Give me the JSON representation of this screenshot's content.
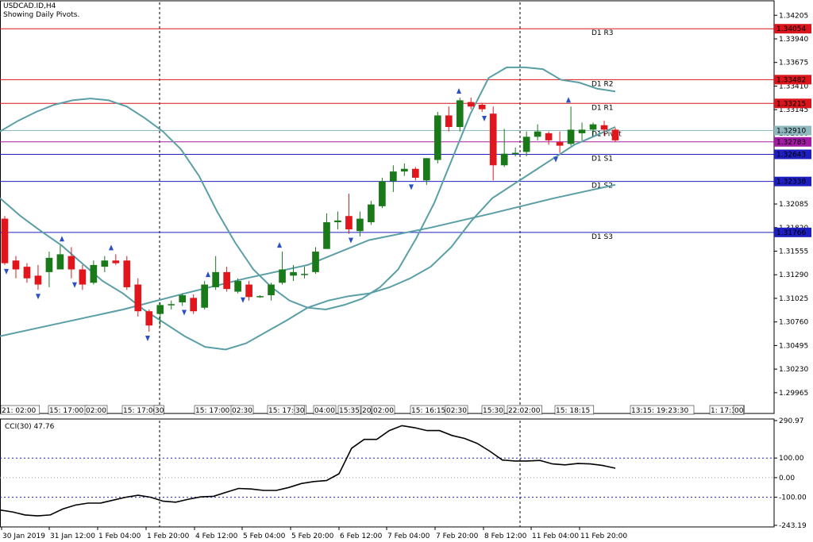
{
  "header": {
    "symbol": "USDCAD.ID,H4",
    "subtitle": "Showing Daily Pivots."
  },
  "colors": {
    "bull": "#1a7a1a",
    "bear": "#e0161c",
    "band": "#5a9ea6",
    "resistance": "#d9161c",
    "support": "#1f1fbf",
    "pivot": "#8fb8bf",
    "price_line": "#a31ba3",
    "fractal": "#2a4fc8",
    "cci_line": "#000000"
  },
  "price_axis": {
    "ticks": [
      "1.34205",
      "1.33940",
      "1.33675",
      "1.33410",
      "1.33145",
      "1.32880",
      "1.32615",
      "1.32350",
      "1.32085",
      "1.31820",
      "1.31555",
      "1.31290",
      "1.31025",
      "1.30760",
      "1.30495",
      "1.30230",
      "1.29965"
    ]
  },
  "levels": [
    {
      "name": "D1 R3",
      "value": "1.34054",
      "color": "#d9161c"
    },
    {
      "name": "D1 R2",
      "value": "1.33482",
      "color": "#d9161c"
    },
    {
      "name": "D1 R1",
      "value": "1.33215",
      "color": "#d9161c"
    },
    {
      "name": "D1 Pivot",
      "value": "1.32910",
      "color": "#8fb8bf"
    },
    {
      "name": "D1 S1",
      "value": "1.32643",
      "color": "#1f1fbf"
    },
    {
      "name": "D1 S2",
      "value": "1.32338",
      "color": "#1f1fbf"
    },
    {
      "name": "D1 S3",
      "value": "1.31766",
      "color": "#1f1fbf"
    }
  ],
  "current_price": "1.32783",
  "overlay_labels": [
    "21: 02:00",
    "15: 17:00",
    "02:00",
    "15: 17:00",
    "30",
    "15: 17:00",
    "02:30",
    "15: 17:01",
    "30",
    "04:00",
    "15:35",
    "20",
    "02:00",
    "15: 16:15",
    "02:30",
    "15:30",
    "22:02:00",
    "15: 18:15",
    "13:15: 19:23:30",
    "1: 17:30",
    "00"
  ],
  "cci": {
    "label": "CCI(30) 47.76",
    "ticks": [
      "290.97",
      "100.00",
      "0.00",
      "-100.00",
      "-243.19"
    ]
  },
  "time_axis": [
    "30 Jan 2019",
    "31 Jan 12:00",
    "1 Feb 04:00",
    "1 Feb 20:00",
    "4 Feb 12:00",
    "5 Feb 04:00",
    "5 Feb 20:00",
    "6 Feb 12:00",
    "7 Feb 04:00",
    "7 Feb 20:00",
    "8 Feb 12:00",
    "11 Feb 04:00",
    "11 Feb 20:00"
  ],
  "chart_data": {
    "type": "candlestick",
    "title": "USDCAD.ID,H4",
    "y_range": [
      1.2983,
      1.3435
    ],
    "candles": [
      {
        "o": 1.3192,
        "h": 1.3195,
        "l": 1.314,
        "c": 1.3142
      },
      {
        "o": 1.3145,
        "h": 1.315,
        "l": 1.3125,
        "c": 1.3135
      },
      {
        "o": 1.3138,
        "h": 1.3142,
        "l": 1.312,
        "c": 1.3125
      },
      {
        "o": 1.3128,
        "h": 1.314,
        "l": 1.3112,
        "c": 1.3118
      },
      {
        "o": 1.3132,
        "h": 1.3155,
        "l": 1.3115,
        "c": 1.3148
      },
      {
        "o": 1.3135,
        "h": 1.3162,
        "l": 1.3135,
        "c": 1.3152
      },
      {
        "o": 1.315,
        "h": 1.316,
        "l": 1.3125,
        "c": 1.3135
      },
      {
        "o": 1.3135,
        "h": 1.314,
        "l": 1.3112,
        "c": 1.3118
      },
      {
        "o": 1.312,
        "h": 1.3145,
        "l": 1.3118,
        "c": 1.314
      },
      {
        "o": 1.3138,
        "h": 1.315,
        "l": 1.3132,
        "c": 1.3145
      },
      {
        "o": 1.3145,
        "h": 1.3152,
        "l": 1.314,
        "c": 1.3142
      },
      {
        "o": 1.3145,
        "h": 1.315,
        "l": 1.3112,
        "c": 1.3115
      },
      {
        "o": 1.3118,
        "h": 1.3125,
        "l": 1.3082,
        "c": 1.3088
      },
      {
        "o": 1.3088,
        "h": 1.309,
        "l": 1.3065,
        "c": 1.3072
      },
      {
        "o": 1.3085,
        "h": 1.3098,
        "l": 1.307,
        "c": 1.3095
      },
      {
        "o": 1.3095,
        "h": 1.31,
        "l": 1.309,
        "c": 1.3096
      },
      {
        "o": 1.3098,
        "h": 1.3108,
        "l": 1.3094,
        "c": 1.3106
      },
      {
        "o": 1.3103,
        "h": 1.3107,
        "l": 1.3085,
        "c": 1.3088
      },
      {
        "o": 1.3092,
        "h": 1.3122,
        "l": 1.309,
        "c": 1.3118
      },
      {
        "o": 1.3115,
        "h": 1.315,
        "l": 1.3112,
        "c": 1.3132
      },
      {
        "o": 1.3132,
        "h": 1.3138,
        "l": 1.311,
        "c": 1.3113
      },
      {
        "o": 1.311,
        "h": 1.3125,
        "l": 1.3108,
        "c": 1.3122
      },
      {
        "o": 1.3118,
        "h": 1.3122,
        "l": 1.31,
        "c": 1.3104
      },
      {
        "o": 1.3104,
        "h": 1.3106,
        "l": 1.3103,
        "c": 1.3105
      },
      {
        "o": 1.3106,
        "h": 1.312,
        "l": 1.31,
        "c": 1.3118
      },
      {
        "o": 1.312,
        "h": 1.3155,
        "l": 1.3118,
        "c": 1.3135
      },
      {
        "o": 1.3128,
        "h": 1.314,
        "l": 1.3122,
        "c": 1.3132
      },
      {
        "o": 1.313,
        "h": 1.3138,
        "l": 1.3125,
        "c": 1.313
      },
      {
        "o": 1.3132,
        "h": 1.316,
        "l": 1.313,
        "c": 1.3155
      },
      {
        "o": 1.3158,
        "h": 1.3198,
        "l": 1.3158,
        "c": 1.3188
      },
      {
        "o": 1.3188,
        "h": 1.32,
        "l": 1.318,
        "c": 1.319
      },
      {
        "o": 1.3195,
        "h": 1.322,
        "l": 1.3175,
        "c": 1.318
      },
      {
        "o": 1.3178,
        "h": 1.32,
        "l": 1.3172,
        "c": 1.3192
      },
      {
        "o": 1.3188,
        "h": 1.3212,
        "l": 1.3185,
        "c": 1.3208
      },
      {
        "o": 1.3206,
        "h": 1.3238,
        "l": 1.3204,
        "c": 1.3234
      },
      {
        "o": 1.3234,
        "h": 1.3252,
        "l": 1.3222,
        "c": 1.3245
      },
      {
        "o": 1.3245,
        "h": 1.3254,
        "l": 1.324,
        "c": 1.3248
      },
      {
        "o": 1.3248,
        "h": 1.325,
        "l": 1.3235,
        "c": 1.3238
      },
      {
        "o": 1.3235,
        "h": 1.326,
        "l": 1.323,
        "c": 1.326
      },
      {
        "o": 1.3258,
        "h": 1.3312,
        "l": 1.3254,
        "c": 1.3308
      },
      {
        "o": 1.3308,
        "h": 1.3318,
        "l": 1.329,
        "c": 1.3295
      },
      {
        "o": 1.3295,
        "h": 1.3328,
        "l": 1.329,
        "c": 1.3325
      },
      {
        "o": 1.3323,
        "h": 1.3328,
        "l": 1.3315,
        "c": 1.3318
      },
      {
        "o": 1.332,
        "h": 1.3322,
        "l": 1.3312,
        "c": 1.3315
      },
      {
        "o": 1.331,
        "h": 1.3318,
        "l": 1.3235,
        "c": 1.3252
      },
      {
        "o": 1.3252,
        "h": 1.3293,
        "l": 1.325,
        "c": 1.3265
      },
      {
        "o": 1.3265,
        "h": 1.3272,
        "l": 1.3262,
        "c": 1.3266
      },
      {
        "o": 1.3267,
        "h": 1.329,
        "l": 1.3262,
        "c": 1.3284
      },
      {
        "o": 1.3284,
        "h": 1.3298,
        "l": 1.328,
        "c": 1.329
      },
      {
        "o": 1.3288,
        "h": 1.329,
        "l": 1.3275,
        "c": 1.328
      },
      {
        "o": 1.3278,
        "h": 1.329,
        "l": 1.3266,
        "c": 1.3274
      },
      {
        "o": 1.3276,
        "h": 1.3318,
        "l": 1.3274,
        "c": 1.3292
      },
      {
        "o": 1.3288,
        "h": 1.33,
        "l": 1.328,
        "c": 1.3292
      },
      {
        "o": 1.3292,
        "h": 1.33,
        "l": 1.3286,
        "c": 1.3298
      },
      {
        "o": 1.3297,
        "h": 1.3302,
        "l": 1.3285,
        "c": 1.3292
      },
      {
        "o": 1.3292,
        "h": 1.3294,
        "l": 1.3278,
        "c": 1.328
      }
    ],
    "upper_band": [
      1.329,
      1.3302,
      1.3312,
      1.332,
      1.3325,
      1.3327,
      1.3325,
      1.3318,
      1.3305,
      1.329,
      1.327,
      1.324,
      1.32,
      1.3165,
      1.3135,
      1.3115,
      1.31,
      1.3092,
      1.309,
      1.3095,
      1.3102,
      1.3115,
      1.3135,
      1.317,
      1.321,
      1.326,
      1.331,
      1.335,
      1.3362,
      1.3362,
      1.336,
      1.3348,
      1.3345,
      1.3338,
      1.3335
    ],
    "middle_band": [
      1.3215,
      1.3195,
      1.3178,
      1.3162,
      1.3142,
      1.3122,
      1.3108,
      1.309,
      1.3075,
      1.306,
      1.3048,
      1.3045,
      1.3052,
      1.3065,
      1.3078,
      1.3092,
      1.31,
      1.3105,
      1.3108,
      1.3115,
      1.3125,
      1.3138,
      1.316,
      1.319,
      1.3215,
      1.323,
      1.3245,
      1.326,
      1.3275,
      1.3285,
      1.3295
    ],
    "lower_band": [
      1.306,
      1.3075,
      1.309,
      1.3108,
      1.3125,
      1.314,
      1.3168,
      1.3182,
      1.3198,
      1.3215,
      1.323
    ],
    "cci_values": [
      -165,
      -175,
      -190,
      -195,
      -190,
      -160,
      -140,
      -130,
      -130,
      -115,
      -100,
      -90,
      -100,
      -120,
      -125,
      -110,
      -98,
      -95,
      -75,
      -55,
      -58,
      -65,
      -65,
      -50,
      -30,
      -20,
      -15,
      20,
      150,
      195,
      195,
      240,
      265,
      255,
      240,
      240,
      215,
      200,
      175,
      135,
      90,
      85,
      85,
      88,
      70,
      65,
      72,
      70,
      62,
      48
    ]
  }
}
